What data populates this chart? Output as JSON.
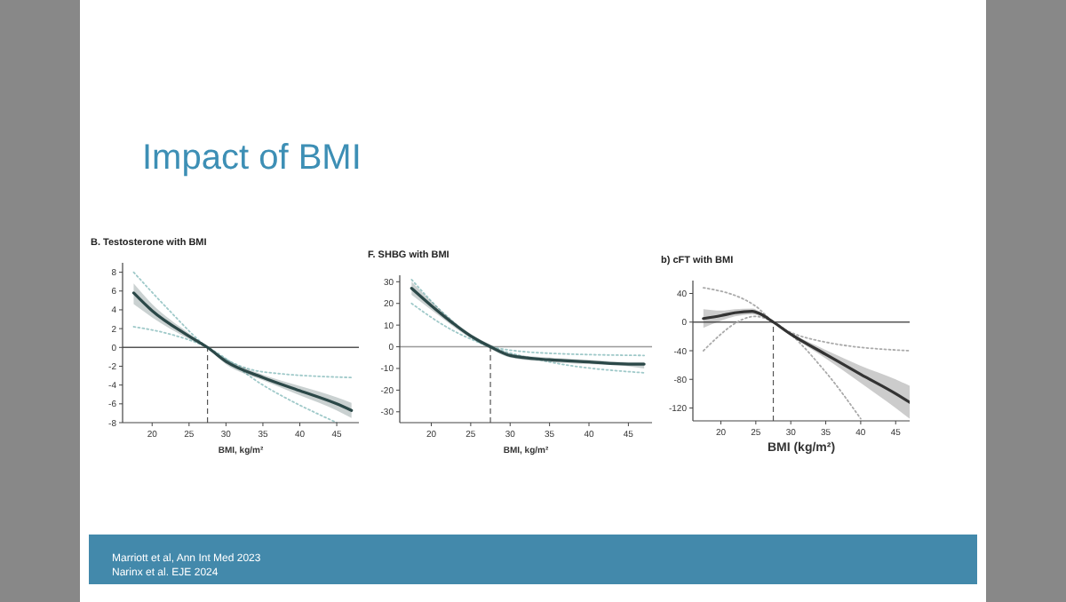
{
  "chart_data": [
    {
      "type": "other",
      "title": "Impact of BMI",
      "annotations": [
        "Marriott et al, Ann Int Med 2023",
        "Narinx et al. EJE 2024"
      ]
    },
    {
      "type": "line",
      "title": "B. Testosterone with BMI",
      "xlabel": "BMI, kg/m²",
      "xlim": [
        16,
        48
      ],
      "xticks": [
        20,
        25,
        30,
        35,
        40,
        45
      ],
      "ylim": [
        -8,
        9
      ],
      "yticks": [
        -8,
        -6,
        -4,
        -2,
        0,
        2,
        4,
        6,
        8
      ],
      "grid": false,
      "ref_lines": [
        {
          "axis": "y",
          "value": 0,
          "color": "#555555",
          "line_style": "solid"
        },
        {
          "axis": "x",
          "value": 27.5,
          "color": "#555555",
          "line_style": "dashed"
        }
      ],
      "series": [
        {
          "type": "line",
          "color": "#9fc9c9",
          "line_style": "dotted",
          "x": [
            17.5,
            22,
            27.5,
            35,
            47
          ],
          "values": [
            8,
            4.2,
            0,
            -2.6,
            -3.2
          ]
        },
        {
          "type": "line",
          "color": "#9fc9c9",
          "line_style": "dotted",
          "x": [
            17.5,
            22,
            27.5,
            35,
            45
          ],
          "values": [
            2.2,
            1.5,
            0,
            -4,
            -8
          ]
        },
        {
          "type": "line",
          "color": "#2b4848",
          "line_style": "solid",
          "x": [
            17.5,
            20,
            25,
            27.5,
            30,
            35,
            40,
            45,
            47
          ],
          "values": [
            5.8,
            3.9,
            1.2,
            0,
            -1.5,
            -3.2,
            -4.6,
            -6,
            -6.7
          ],
          "lower": [
            4.6,
            3.2,
            0.9,
            -0.1,
            -1.8,
            -3.5,
            -5.1,
            -6.7,
            -7.5
          ],
          "upper": [
            6.8,
            4.6,
            1.5,
            0.1,
            -1.2,
            -2.9,
            -4.1,
            -5.3,
            -5.9
          ]
        }
      ]
    },
    {
      "type": "line",
      "title": "F. SHBG with BMI",
      "xlabel": "BMI, kg/m²",
      "xlim": [
        16,
        48
      ],
      "xticks": [
        20,
        25,
        30,
        35,
        40,
        45
      ],
      "ylim": [
        -35,
        33
      ],
      "yticks": [
        -30,
        -20,
        -10,
        0,
        10,
        20,
        30
      ],
      "grid": false,
      "ref_lines": [
        {
          "axis": "y",
          "value": 0,
          "color": "#999999",
          "line_style": "solid"
        },
        {
          "axis": "x",
          "value": 27.5,
          "color": "#555555",
          "line_style": "dashed"
        }
      ],
      "series": [
        {
          "type": "line",
          "color": "#9fc9c9",
          "line_style": "dotted",
          "x": [
            17.5,
            22,
            27.5,
            35,
            47
          ],
          "values": [
            31,
            14,
            0,
            -3,
            -4
          ]
        },
        {
          "type": "line",
          "color": "#9fc9c9",
          "line_style": "dotted",
          "x": [
            17.5,
            22,
            27.5,
            35,
            47
          ],
          "values": [
            20,
            9,
            0,
            -7,
            -12
          ]
        },
        {
          "type": "line",
          "color": "#2b4848",
          "line_style": "solid",
          "x": [
            17.5,
            20,
            25,
            27.5,
            30,
            35,
            40,
            45,
            47
          ],
          "values": [
            27,
            19,
            5,
            0,
            -4,
            -6,
            -7,
            -8,
            -8
          ],
          "lower": [
            24,
            17,
            4,
            -1,
            -5,
            -7,
            -8,
            -9,
            -10
          ],
          "upper": [
            30,
            21,
            6,
            1,
            -3,
            -5,
            -6,
            -7,
            -7
          ]
        }
      ]
    },
    {
      "type": "line",
      "title": "b) cFT with BMI",
      "xlabel": "BMI (kg/m²)",
      "xlim": [
        16,
        47
      ],
      "xticks": [
        20,
        25,
        30,
        35,
        40,
        45
      ],
      "ylim": [
        -138,
        58
      ],
      "yticks": [
        -120,
        -80,
        -40,
        0,
        40
      ],
      "grid": false,
      "ref_lines": [
        {
          "axis": "y",
          "value": 0,
          "color": "#555555",
          "line_style": "solid"
        },
        {
          "axis": "x",
          "value": 27.5,
          "color": "#555555",
          "line_style": "dashed"
        }
      ],
      "series": [
        {
          "type": "line",
          "color": "#aaaaaa",
          "line_style": "dotted",
          "x": [
            17.5,
            25,
            27.5,
            35,
            47
          ],
          "values": [
            48,
            22,
            0,
            -28,
            -40
          ]
        },
        {
          "type": "line",
          "color": "#aaaaaa",
          "line_style": "dotted",
          "x": [
            17.5,
            25,
            27.5,
            35,
            40
          ],
          "values": [
            -40,
            8,
            0,
            -70,
            -135
          ]
        },
        {
          "type": "line",
          "color": "#333333",
          "line_style": "solid",
          "x": [
            17.5,
            20,
            22,
            24.5,
            25.5,
            27.5,
            30,
            35,
            40,
            45,
            47
          ],
          "values": [
            5,
            9,
            13,
            15,
            12,
            0,
            -17,
            -45,
            -73,
            -100,
            -112
          ],
          "lower": [
            -8,
            2,
            8,
            11,
            9,
            -1,
            -19,
            -51,
            -85,
            -120,
            -135
          ],
          "upper": [
            18,
            16,
            18,
            19,
            15,
            1,
            -15,
            -39,
            -61,
            -80,
            -89
          ]
        }
      ]
    }
  ]
}
